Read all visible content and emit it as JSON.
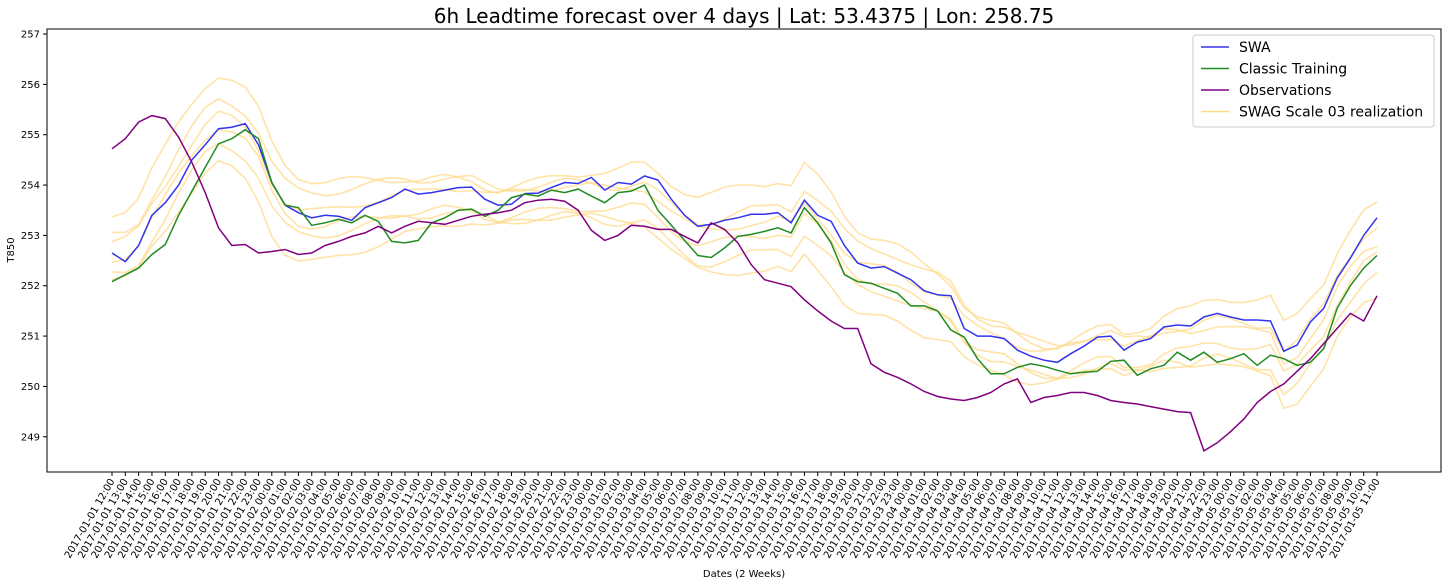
{
  "chart_data": {
    "type": "line",
    "title": "6h Leadtime forecast over 4 days | Lat: 53.4375 |  Lon: 258.75",
    "xlabel": "Dates (2 Weeks)",
    "ylabel": "T850",
    "ylim": [
      248.3,
      257.1
    ],
    "yticks": [
      249,
      250,
      251,
      252,
      253,
      254,
      255,
      256,
      257
    ],
    "grid": false,
    "legend_position": "top-right",
    "x": [
      "2017-01-01 12:00",
      "2017-01-01 13:00",
      "2017-01-01 14:00",
      "2017-01-01 15:00",
      "2017-01-01 16:00",
      "2017-01-01 17:00",
      "2017-01-01 18:00",
      "2017-01-01 19:00",
      "2017-01-01 20:00",
      "2017-01-01 21:00",
      "2017-01-01 22:00",
      "2017-01-01 23:00",
      "2017-01-02 00:00",
      "2017-01-02 01:00",
      "2017-01-02 02:00",
      "2017-01-02 03:00",
      "2017-01-02 04:00",
      "2017-01-02 05:00",
      "2017-01-02 06:00",
      "2017-01-02 07:00",
      "2017-01-02 08:00",
      "2017-01-02 09:00",
      "2017-01-02 10:00",
      "2017-01-02 11:00",
      "2017-01-02 12:00",
      "2017-01-02 13:00",
      "2017-01-02 14:00",
      "2017-01-02 15:00",
      "2017-01-02 16:00",
      "2017-01-02 17:00",
      "2017-01-02 18:00",
      "2017-01-02 19:00",
      "2017-01-02 20:00",
      "2017-01-02 21:00",
      "2017-01-02 22:00",
      "2017-01-02 23:00",
      "2017-01-03 00:00",
      "2017-01-03 01:00",
      "2017-01-03 02:00",
      "2017-01-03 03:00",
      "2017-01-03 04:00",
      "2017-01-03 05:00",
      "2017-01-03 06:00",
      "2017-01-03 07:00",
      "2017-01-03 08:00",
      "2017-01-03 09:00",
      "2017-01-03 10:00",
      "2017-01-03 11:00",
      "2017-01-03 12:00",
      "2017-01-03 13:00",
      "2017-01-03 14:00",
      "2017-01-03 15:00",
      "2017-01-03 16:00",
      "2017-01-03 17:00",
      "2017-01-03 18:00",
      "2017-01-03 19:00",
      "2017-01-03 20:00",
      "2017-01-03 21:00",
      "2017-01-03 22:00",
      "2017-01-03 23:00",
      "2017-01-04 00:00",
      "2017-01-04 01:00",
      "2017-01-04 02:00",
      "2017-01-04 03:00",
      "2017-01-04 04:00",
      "2017-01-04 05:00",
      "2017-01-04 06:00",
      "2017-01-04 07:00",
      "2017-01-04 08:00",
      "2017-01-04 09:00",
      "2017-01-04 10:00",
      "2017-01-04 11:00",
      "2017-01-04 12:00",
      "2017-01-04 13:00",
      "2017-01-04 14:00",
      "2017-01-04 15:00",
      "2017-01-04 16:00",
      "2017-01-04 17:00",
      "2017-01-04 18:00",
      "2017-01-04 19:00",
      "2017-01-04 20:00",
      "2017-01-04 21:00",
      "2017-01-04 22:00",
      "2017-01-04 23:00",
      "2017-01-05 00:00",
      "2017-01-05 01:00",
      "2017-01-05 02:00",
      "2017-01-05 03:00",
      "2017-01-05 04:00",
      "2017-01-05 05:00",
      "2017-01-05 06:00",
      "2017-01-05 07:00",
      "2017-01-05 08:00",
      "2017-01-05 09:00",
      "2017-01-05 10:00",
      "2017-01-05 11:00"
    ],
    "series": [
      {
        "name": "SWA",
        "color": "#3333ee",
        "values": [
          252.65,
          252.48,
          252.8,
          253.4,
          253.65,
          254.0,
          254.5,
          254.8,
          255.12,
          255.15,
          255.22,
          254.8,
          254.05,
          253.6,
          253.45,
          253.35,
          253.4,
          253.38,
          253.3,
          253.55,
          253.65,
          253.75,
          253.92,
          253.82,
          253.85,
          253.9,
          253.95,
          253.96,
          253.72,
          253.6,
          253.62,
          253.83,
          253.84,
          253.95,
          254.05,
          254.03,
          254.15,
          253.9,
          254.05,
          254.02,
          254.18,
          254.1,
          253.72,
          253.4,
          253.18,
          253.22,
          253.3,
          253.35,
          253.42,
          253.42,
          253.45,
          253.25,
          253.7,
          253.4,
          253.28,
          252.8,
          252.45,
          252.35,
          252.38,
          252.25,
          252.12,
          251.9,
          251.82,
          251.8,
          251.15,
          251.0,
          251.0,
          250.95,
          250.72,
          250.6,
          250.52,
          250.48,
          250.65,
          250.8,
          250.98,
          251.0,
          250.72,
          250.88,
          250.95,
          251.18,
          251.22,
          251.2,
          251.38,
          251.45,
          251.38,
          251.32,
          251.32,
          251.3,
          250.7,
          250.82,
          251.28,
          251.55,
          252.15,
          252.55,
          253.0,
          253.35
        ]
      },
      {
        "name": "Classic Training",
        "color": "#228b22",
        "values": [
          252.08,
          252.22,
          252.35,
          252.62,
          252.82,
          253.4,
          253.88,
          254.35,
          254.82,
          254.92,
          255.1,
          254.92,
          254.05,
          253.6,
          253.55,
          253.2,
          253.25,
          253.32,
          253.25,
          253.4,
          253.28,
          252.88,
          252.85,
          252.9,
          253.25,
          253.35,
          253.5,
          253.52,
          253.38,
          253.5,
          253.75,
          253.82,
          253.78,
          253.9,
          253.85,
          253.92,
          253.78,
          253.65,
          253.85,
          253.88,
          254.0,
          253.5,
          253.2,
          252.9,
          252.6,
          252.56,
          252.75,
          252.98,
          253.02,
          253.08,
          253.15,
          253.05,
          253.55,
          253.25,
          252.85,
          252.22,
          252.08,
          252.05,
          251.95,
          251.85,
          251.6,
          251.6,
          251.5,
          251.12,
          250.98,
          250.55,
          250.25,
          250.25,
          250.38,
          250.45,
          250.4,
          250.32,
          250.25,
          250.28,
          250.3,
          250.5,
          250.52,
          250.22,
          250.35,
          250.42,
          250.68,
          250.52,
          250.68,
          250.48,
          250.55,
          250.65,
          250.42,
          250.62,
          250.55,
          250.42,
          250.48,
          250.75,
          251.55,
          252.0,
          252.35,
          252.6
        ]
      },
      {
        "name": "Observations",
        "color": "#800080",
        "values": [
          254.72,
          254.92,
          255.25,
          255.38,
          255.32,
          254.95,
          254.45,
          253.85,
          253.15,
          252.8,
          252.82,
          252.65,
          252.68,
          252.72,
          252.62,
          252.65,
          252.8,
          252.88,
          252.98,
          253.05,
          253.18,
          253.05,
          253.18,
          253.28,
          253.25,
          253.22,
          253.3,
          253.38,
          253.42,
          253.45,
          253.5,
          253.65,
          253.7,
          253.72,
          253.68,
          253.5,
          253.1,
          252.9,
          253.0,
          253.2,
          253.18,
          253.12,
          253.12,
          252.98,
          252.85,
          253.25,
          253.12,
          252.85,
          252.42,
          252.12,
          252.05,
          251.98,
          251.72,
          251.5,
          251.3,
          251.15,
          251.15,
          250.45,
          250.28,
          250.18,
          250.05,
          249.9,
          249.8,
          249.75,
          249.72,
          249.78,
          249.88,
          250.05,
          250.15,
          249.68,
          249.78,
          249.82,
          249.88,
          249.88,
          249.82,
          249.72,
          249.68,
          249.65,
          249.6,
          249.55,
          249.5,
          249.48,
          248.72,
          248.88,
          249.1,
          249.35,
          249.68,
          249.9,
          250.05,
          250.3,
          250.55,
          250.85,
          251.15,
          251.45,
          251.3,
          251.8
        ]
      },
      {
        "name": "SWAG Scale 03 realization",
        "color": "#ffd98a",
        "values": [
          252.75,
          252.8,
          253.0,
          253.5,
          253.9,
          254.35,
          254.75,
          255.1,
          255.3,
          255.2,
          255.0,
          254.6,
          253.95,
          253.55,
          253.35,
          253.3,
          253.3,
          253.35,
          253.4,
          253.45,
          253.5,
          253.55,
          253.6,
          253.6,
          253.65,
          253.7,
          253.7,
          253.7,
          253.6,
          253.55,
          253.6,
          253.65,
          253.7,
          253.75,
          253.8,
          253.8,
          253.8,
          253.75,
          253.75,
          253.8,
          253.8,
          253.6,
          253.35,
          253.15,
          253.0,
          253.0,
          253.05,
          253.1,
          253.15,
          253.15,
          253.2,
          253.1,
          253.5,
          253.25,
          252.95,
          252.55,
          252.3,
          252.2,
          252.15,
          252.05,
          251.9,
          251.75,
          251.65,
          251.5,
          251.1,
          250.9,
          250.8,
          250.75,
          250.6,
          250.5,
          250.45,
          250.45,
          250.55,
          250.65,
          250.75,
          250.8,
          250.65,
          250.7,
          250.75,
          250.9,
          250.95,
          250.95,
          251.05,
          251.1,
          251.05,
          251.0,
          250.95,
          250.95,
          250.4,
          250.55,
          250.9,
          251.2,
          251.8,
          252.2,
          252.55,
          252.7
        ]
      }
    ]
  }
}
